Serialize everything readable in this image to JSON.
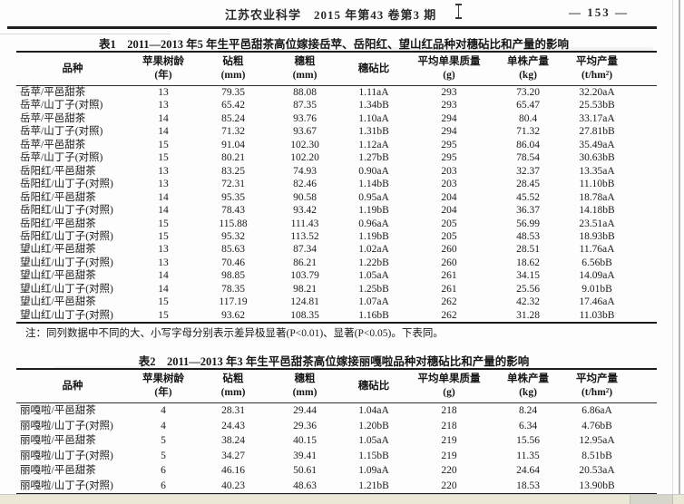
{
  "header": {
    "journal": "江苏农业科学　2015 年第43 卷第3 期",
    "page_number": "— 153 —"
  },
  "note": "注：同列数据中不同的大、小写字母分别表示差异极显著(P<0.01)、显著(P<0.05)。下表同。",
  "table1": {
    "title": "表1　2011—2013 年5 年生平邑甜茶高位嫁接岳苹、岳阳红、望山红品种对穗砧比和产量的影响",
    "columns": [
      {
        "label": "品种",
        "unit": ""
      },
      {
        "label": "苹果树龄",
        "unit": "(年)"
      },
      {
        "label": "砧粗",
        "unit": "(mm)"
      },
      {
        "label": "穗粗",
        "unit": "(mm)"
      },
      {
        "label": "穗砧比",
        "unit": ""
      },
      {
        "label": "平均单果质量",
        "unit": "(g)"
      },
      {
        "label": "单株产量",
        "unit": "(kg)"
      },
      {
        "label": "平均产量",
        "unit": "(t/hm²)"
      }
    ],
    "rows": [
      [
        "岳苹/平邑甜茶",
        "13",
        "79.35",
        "88.08",
        "1.11aA",
        "293",
        "73.20",
        "32.20aA"
      ],
      [
        "岳苹/山丁子(对照)",
        "13",
        "65.42",
        "87.35",
        "1.34bB",
        "293",
        "65.47",
        "25.53bB"
      ],
      [
        "岳苹/平邑甜茶",
        "14",
        "85.24",
        "93.76",
        "1.10aA",
        "294",
        "80.4",
        "33.17aA"
      ],
      [
        "岳苹/山丁子(对照)",
        "14",
        "71.32",
        "93.67",
        "1.31bB",
        "294",
        "71.32",
        "27.81bB"
      ],
      [
        "岳苹/平邑甜茶",
        "15",
        "91.04",
        "102.30",
        "1.12aA",
        "295",
        "86.04",
        "35.49aA"
      ],
      [
        "岳苹/山丁子(对照)",
        "15",
        "80.21",
        "102.20",
        "1.27bB",
        "295",
        "78.54",
        "30.63bB"
      ],
      [
        "岳阳红/平邑甜茶",
        "13",
        "83.25",
        "74.93",
        "0.90aA",
        "203",
        "32.37",
        "13.35aA"
      ],
      [
        "岳阳红/山丁子(对照)",
        "13",
        "72.31",
        "82.46",
        "1.14bB",
        "203",
        "28.45",
        "11.10bB"
      ],
      [
        "岳阳红/平邑甜茶",
        "14",
        "95.35",
        "90.58",
        "0.95aA",
        "204",
        "45.52",
        "18.78aA"
      ],
      [
        "岳阳红/山丁子(对照)",
        "14",
        "78.43",
        "93.42",
        "1.19bB",
        "204",
        "36.37",
        "14.18bB"
      ],
      [
        "岳阳红/平邑甜茶",
        "15",
        "115.88",
        "111.43",
        "0.96aA",
        "205",
        "56.99",
        "23.51aA"
      ],
      [
        "岳阳红/山丁子(对照)",
        "15",
        "95.32",
        "113.52",
        "1.19bB",
        "205",
        "48.53",
        "18.93bB"
      ],
      [
        "望山红/平邑甜茶",
        "13",
        "85.63",
        "87.34",
        "1.02aA",
        "260",
        "28.51",
        "11.76aA"
      ],
      [
        "望山红/山丁子(对照)",
        "13",
        "70.46",
        "86.21",
        "1.22bB",
        "260",
        "18.62",
        "6.56bB"
      ],
      [
        "望山红/平邑甜茶",
        "14",
        "98.85",
        "103.79",
        "1.05aA",
        "261",
        "34.15",
        "14.09aA"
      ],
      [
        "望山红/山丁子(对照)",
        "14",
        "78.35",
        "98.21",
        "1.25bB",
        "261",
        "25.56",
        "9.01bB"
      ],
      [
        "望山红/平邑甜茶",
        "15",
        "117.19",
        "124.81",
        "1.07aA",
        "262",
        "42.32",
        "17.46aA"
      ],
      [
        "望山红/山丁子(对照)",
        "15",
        "93.62",
        "108.35",
        "1.16bB",
        "262",
        "31.28",
        "11.03bB"
      ]
    ]
  },
  "table2": {
    "title": "表2　2011—2013 年3 年生平邑甜茶高位嫁接丽嘎啦品种对穗砧比和产量的影响",
    "columns": [
      {
        "label": "品种",
        "unit": ""
      },
      {
        "label": "苹果树龄",
        "unit": "(年)"
      },
      {
        "label": "砧粗",
        "unit": "(mm)"
      },
      {
        "label": "穗粗",
        "unit": "(mm)"
      },
      {
        "label": "穗砧比",
        "unit": ""
      },
      {
        "label": "平均单果质量",
        "unit": "(g)"
      },
      {
        "label": "单株产量",
        "unit": "(kg)"
      },
      {
        "label": "平均产量",
        "unit": "(t/hm²)"
      }
    ],
    "rows": [
      [
        "丽嘎啦/平邑甜茶",
        "4",
        "28.31",
        "29.44",
        "1.04aA",
        "218",
        "8.24",
        "6.86aA"
      ],
      [
        "丽嘎啦/山丁子(对照)",
        "4",
        "24.43",
        "29.36",
        "1.20bB",
        "218",
        "6.34",
        "4.76bB"
      ],
      [
        "丽嘎啦/平邑甜茶",
        "5",
        "38.24",
        "40.15",
        "1.05aA",
        "219",
        "15.56",
        "12.95aA"
      ],
      [
        "丽嘎啦/山丁子(对照)",
        "5",
        "34.27",
        "39.41",
        "1.15bB",
        "219",
        "11.35",
        "8.51bB"
      ],
      [
        "丽嘎啦/平邑甜茶",
        "6",
        "46.16",
        "50.61",
        "1.09aA",
        "220",
        "24.64",
        "20.53aA"
      ],
      [
        "丽嘎啦/山丁子(对照)",
        "6",
        "40.23",
        "48.63",
        "1.21bB",
        "220",
        "18.53",
        "13.90bB"
      ]
    ]
  }
}
